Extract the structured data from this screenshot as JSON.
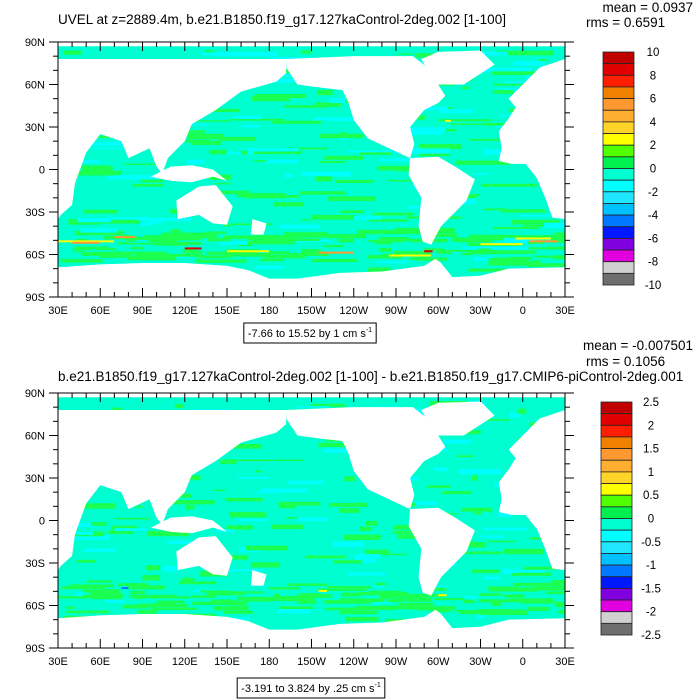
{
  "chart_data": [
    {
      "type": "heatmap",
      "title": "UVEL at z=2889.4m, b.e21.B1850.f19_g17.127kaControl-2deg.002 [1-100]",
      "stats": {
        "mean": "mean = 0.0937",
        "rms": "rms = 0.6591"
      },
      "info_label": "-7.66 to 15.52 by 1 cm s",
      "info_superscript": "-1",
      "x_ticks": [
        "30E",
        "60E",
        "90E",
        "120E",
        "150E",
        "180",
        "150W",
        "120W",
        "90W",
        "60W",
        "30W",
        "0",
        "30E"
      ],
      "y_ticks": [
        "90N",
        "60N",
        "30N",
        "0",
        "30S",
        "60S",
        "90S"
      ],
      "xlim": [
        30,
        390
      ],
      "ylim": [
        -90,
        90
      ],
      "colorbar": {
        "labels": [
          "10",
          "8",
          "6",
          "4",
          "2",
          "0",
          "-2",
          "-4",
          "-6",
          "-8",
          "-10"
        ],
        "range": [
          -10,
          10
        ],
        "step": 1
      },
      "hotspots": true
    },
    {
      "type": "heatmap",
      "title": "b.e21.B1850.f19_g17.127kaControl-2deg.002 [1-100] - b.e21.B1850.f19_g17.CMIP6-piControl-2deg.001",
      "stats": {
        "mean": "mean = -0.007501",
        "rms": "rms = 0.1056"
      },
      "info_label": "-3.191 to 3.824 by .25 cm s",
      "info_superscript": "-1",
      "x_ticks": [
        "30E",
        "60E",
        "90E",
        "120E",
        "150E",
        "180",
        "150W",
        "120W",
        "90W",
        "60W",
        "30W",
        "0",
        "30E"
      ],
      "y_ticks": [
        "90N",
        "60N",
        "30N",
        "0",
        "30S",
        "60S",
        "90S"
      ],
      "xlim": [
        30,
        390
      ],
      "ylim": [
        -90,
        90
      ],
      "colorbar": {
        "labels": [
          "2.5",
          "2",
          "1.5",
          "1",
          "0.5",
          "0",
          "-0.5",
          "-1",
          "-1.5",
          "-2",
          "-2.5"
        ],
        "range": [
          -2.5,
          2.5
        ],
        "step": 0.25
      },
      "hotspots": false
    }
  ],
  "colors": {
    "colorbar_top_to_bottom": [
      "#c00000",
      "#e00000",
      "#ff1e00",
      "#f08000",
      "#ff9830",
      "#ffae30",
      "#ffd428",
      "#ffff00",
      "#50ff00",
      "#00f050",
      "#00ffd0",
      "#00ffff",
      "#20e6ff",
      "#00c0ff",
      "#0078ff",
      "#0018ff",
      "#8000e0",
      "#e000e0",
      "#d0d0d0",
      "#6e6e6e"
    ],
    "land": "#ffffff"
  }
}
